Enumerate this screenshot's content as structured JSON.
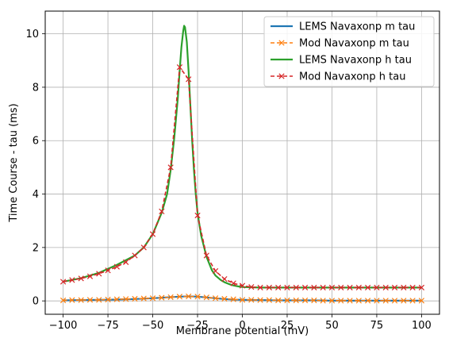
{
  "chart_data": {
    "type": "line",
    "title": "",
    "xlabel": "Membrane potential (mV)",
    "ylabel": "Time Course - tau (ms)",
    "xlim": [
      -110,
      110
    ],
    "ylim": [
      -0.5,
      10.85
    ],
    "xticks": [
      -100,
      -75,
      -50,
      -25,
      0,
      25,
      50,
      75,
      100
    ],
    "yticks": [
      0,
      2,
      4,
      6,
      8,
      10
    ],
    "grid": true,
    "legend_position": "top-right",
    "series": [
      {
        "name": "LEMS Navaxonp m tau",
        "color": "#1f77b4",
        "style": "solid",
        "marker": "none",
        "x": [
          -100,
          -90,
          -80,
          -70,
          -60,
          -50,
          -45,
          -40,
          -35,
          -30,
          -25,
          -20,
          -15,
          -10,
          -5,
          0,
          10,
          20,
          30,
          40,
          50,
          60,
          70,
          80,
          90,
          100
        ],
        "y": [
          0.02,
          0.03,
          0.04,
          0.05,
          0.07,
          0.1,
          0.12,
          0.14,
          0.16,
          0.17,
          0.16,
          0.13,
          0.1,
          0.07,
          0.05,
          0.04,
          0.03,
          0.02,
          0.02,
          0.02,
          0.01,
          0.01,
          0.01,
          0.01,
          0.01,
          0.01
        ]
      },
      {
        "name": "Mod Navaxonp m tau",
        "color": "#ff7f0e",
        "style": "dashed",
        "marker": "x",
        "x": [
          -100,
          -95,
          -90,
          -85,
          -80,
          -75,
          -70,
          -65,
          -60,
          -55,
          -50,
          -45,
          -40,
          -35,
          -30,
          -25,
          -20,
          -15,
          -10,
          -5,
          0,
          5,
          10,
          15,
          20,
          25,
          30,
          35,
          40,
          45,
          50,
          55,
          60,
          65,
          70,
          75,
          80,
          85,
          90,
          95,
          100
        ],
        "y": [
          0.02,
          0.03,
          0.03,
          0.04,
          0.04,
          0.05,
          0.06,
          0.07,
          0.08,
          0.09,
          0.1,
          0.12,
          0.14,
          0.16,
          0.17,
          0.16,
          0.13,
          0.1,
          0.08,
          0.06,
          0.04,
          0.04,
          0.03,
          0.03,
          0.02,
          0.02,
          0.02,
          0.02,
          0.02,
          0.01,
          0.01,
          0.01,
          0.01,
          0.01,
          0.01,
          0.01,
          0.01,
          0.01,
          0.01,
          0.01,
          0.01
        ]
      },
      {
        "name": "LEMS Navaxonp h tau",
        "color": "#2ca02c",
        "style": "solid",
        "marker": "none",
        "x": [
          -100,
          -90,
          -80,
          -70,
          -60,
          -55,
          -50,
          -45,
          -42,
          -40,
          -38,
          -36,
          -35,
          -34,
          -33,
          -32.5,
          -32,
          -31,
          -30,
          -29,
          -28,
          -27,
          -26,
          -25,
          -23,
          -20,
          -17,
          -15,
          -12,
          -10,
          -7,
          -5,
          -2,
          0,
          5,
          10,
          20,
          40,
          60,
          80,
          100
        ],
        "y": [
          0.72,
          0.85,
          1.05,
          1.35,
          1.7,
          2.0,
          2.5,
          3.3,
          4.0,
          4.9,
          6.1,
          7.6,
          8.6,
          9.5,
          10.1,
          10.3,
          10.25,
          9.7,
          8.6,
          7.3,
          6.0,
          4.9,
          4.0,
          3.3,
          2.45,
          1.65,
          1.15,
          0.95,
          0.78,
          0.7,
          0.62,
          0.58,
          0.54,
          0.52,
          0.51,
          0.5,
          0.5,
          0.5,
          0.5,
          0.5,
          0.5
        ]
      },
      {
        "name": "Mod Navaxonp h tau",
        "color": "#d62728",
        "style": "dashed",
        "marker": "x",
        "x": [
          -100,
          -95,
          -90,
          -85,
          -80,
          -75,
          -70,
          -65,
          -60,
          -55,
          -50,
          -45,
          -40,
          -35,
          -30,
          -25,
          -20,
          -15,
          -10,
          -5,
          0,
          5,
          10,
          15,
          20,
          25,
          30,
          35,
          40,
          45,
          50,
          55,
          60,
          65,
          70,
          75,
          80,
          85,
          90,
          95,
          100
        ],
        "y": [
          0.72,
          0.78,
          0.84,
          0.92,
          1.02,
          1.14,
          1.28,
          1.45,
          1.7,
          2.0,
          2.5,
          3.35,
          5.0,
          8.75,
          8.3,
          3.2,
          1.7,
          1.12,
          0.82,
          0.66,
          0.57,
          0.52,
          0.5,
          0.5,
          0.5,
          0.5,
          0.5,
          0.5,
          0.5,
          0.5,
          0.5,
          0.5,
          0.5,
          0.5,
          0.5,
          0.5,
          0.5,
          0.5,
          0.5,
          0.5,
          0.5
        ]
      }
    ]
  }
}
